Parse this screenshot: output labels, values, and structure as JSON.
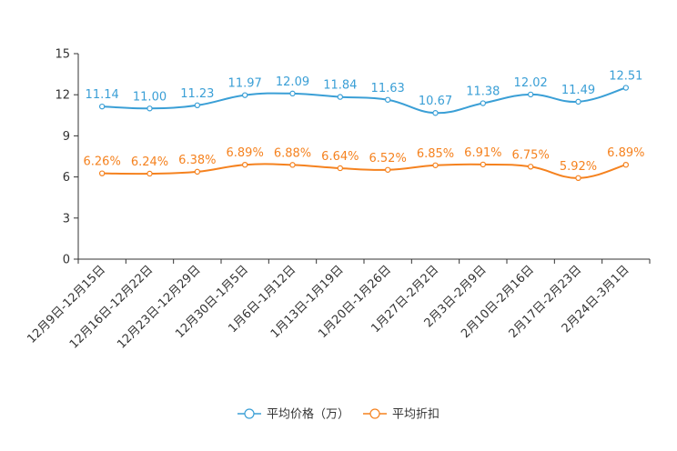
{
  "chart_data": {
    "type": "line",
    "title": "",
    "xlabel": "",
    "ylabel": "",
    "ylim": [
      0,
      15
    ],
    "yticks": [
      0,
      3,
      6,
      9,
      12,
      15
    ],
    "categories": [
      "12月9日-12月15日",
      "12月16日-12月22日",
      "12月23日-12月29日",
      "12月30日-1月5日",
      "1月6日-1月12日",
      "1月13日-1月19日",
      "1月20日-1月26日",
      "1月27日-2月2日",
      "2月3日-2月9日",
      "2月10日-2月16日",
      "2月17日-2月23日",
      "2月24日-3月1日"
    ],
    "series": [
      {
        "name": "平均价格（万）",
        "color": "#3a9fd6",
        "values": [
          11.14,
          11.0,
          11.23,
          11.97,
          12.09,
          11.84,
          11.63,
          10.67,
          11.38,
          12.02,
          11.49,
          12.51
        ],
        "labels": [
          "11.14",
          "11.00",
          "11.23",
          "11.97",
          "12.09",
          "11.84",
          "11.63",
          "10.67",
          "11.38",
          "12.02",
          "11.49",
          "12.51"
        ]
      },
      {
        "name": "平均折扣",
        "color": "#f5821f",
        "values": [
          6.26,
          6.24,
          6.38,
          6.89,
          6.88,
          6.64,
          6.52,
          6.85,
          6.91,
          6.75,
          5.92,
          6.89
        ],
        "labels": [
          "6.26%",
          "6.24%",
          "6.38%",
          "6.89%",
          "6.88%",
          "6.64%",
          "6.52%",
          "6.85%",
          "6.91%",
          "6.75%",
          "5.92%",
          "6.89%"
        ]
      }
    ],
    "legend_position": "bottom-center",
    "grid": false
  }
}
